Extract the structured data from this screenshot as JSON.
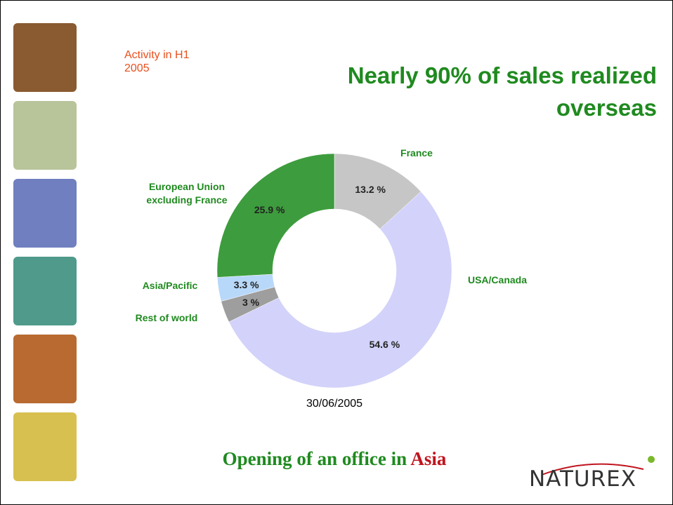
{
  "activity": "Activity in H1 2005",
  "title": "Nearly 90% of sales realized overseas",
  "chart_data": {
    "type": "donut",
    "categories": [
      "France",
      "USA/Canada",
      "Rest of world",
      "Asia/Pacific",
      "European Union excluding France"
    ],
    "values": [
      13.2,
      54.6,
      3,
      3.3,
      25.9
    ],
    "value_labels": [
      "13.2 %",
      "54.6 %",
      "3 %",
      "3.3 %",
      "25.9 %"
    ],
    "colors": [
      "#c6c6c6",
      "#d2d2fa",
      "#9e9e9e",
      "#b8d8fa",
      "#3d9c3d"
    ],
    "caption": "30/06/2005"
  },
  "bottom": {
    "text": "Opening of an office in ",
    "highlight": "Asia"
  },
  "logo": "NATUREX"
}
